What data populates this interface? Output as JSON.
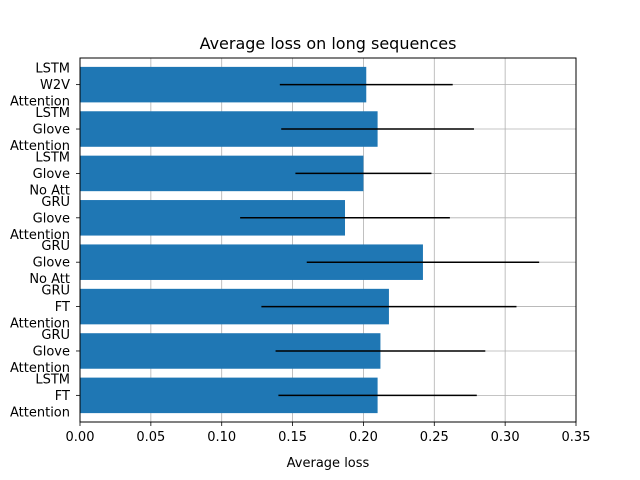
{
  "chart_data": {
    "type": "bar",
    "orientation": "horizontal",
    "title": "Average loss on long sequences",
    "xlabel": "Average loss",
    "ylabel": "",
    "xlim": [
      0.0,
      0.35
    ],
    "x_ticks": [
      "0.00",
      "0.05",
      "0.10",
      "0.15",
      "0.20",
      "0.25",
      "0.30",
      "0.35"
    ],
    "x_tick_values": [
      0.0,
      0.05,
      0.1,
      0.15,
      0.2,
      0.25,
      0.3,
      0.35
    ],
    "grid": true,
    "bar_color": "#1f77b4",
    "errorbar_color": "#000000",
    "categories": [
      "LSTM\nW2V\nAttention",
      "LSTM\nGlove\nAttention",
      "LSTM\nGlove\nNo Att",
      "GRU\nGlove\nAttention",
      "GRU\nGlove\nNo Att",
      "GRU\nFT\nAttention",
      "GRU\nGlove\nAttention",
      "LSTM\nFT\nAttention"
    ],
    "values": [
      0.202,
      0.21,
      0.2,
      0.187,
      0.242,
      0.218,
      0.212,
      0.21
    ],
    "errors": [
      0.061,
      0.068,
      0.048,
      0.074,
      0.082,
      0.09,
      0.074,
      0.07
    ]
  }
}
